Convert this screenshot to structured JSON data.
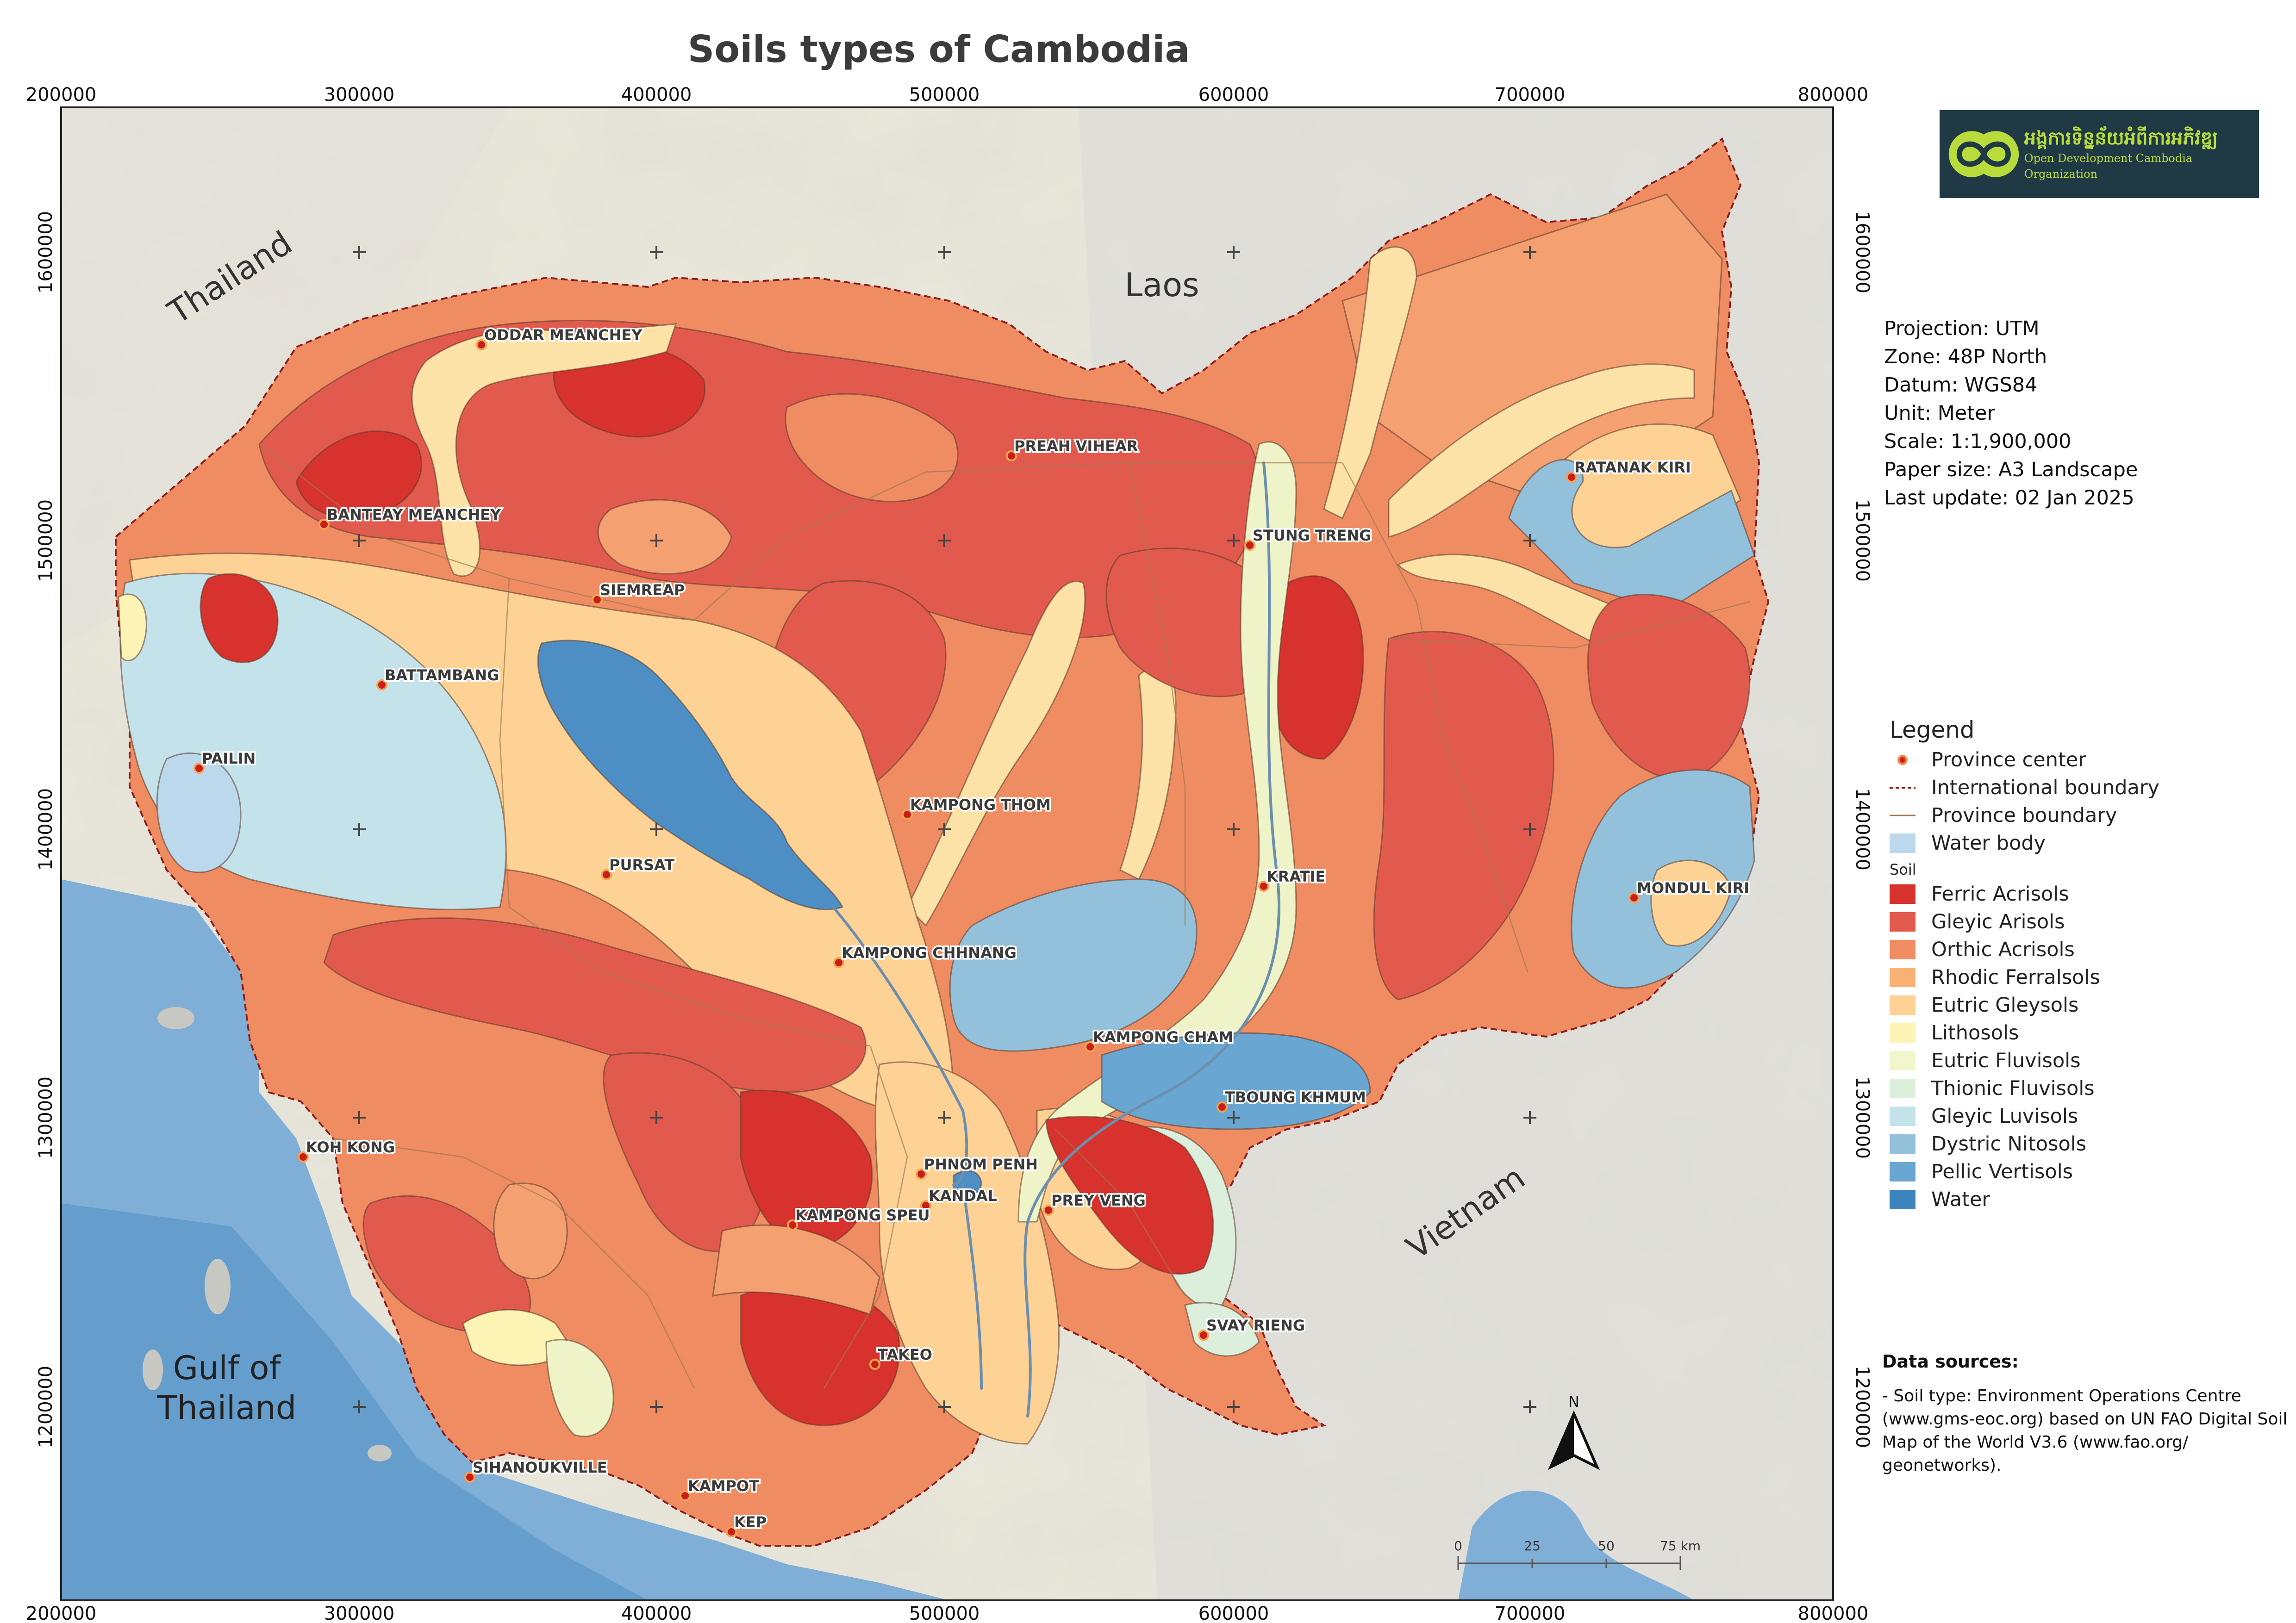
{
  "title": "Soils types of Cambodia",
  "logo": {
    "khmer": "អង្គការទិន្នន័យអំពីការអភិវឌ្ឍ",
    "english": "Open Development Cambodia Organization",
    "colors": {
      "background": "#1f3a44",
      "accent": "#b8dc3c"
    }
  },
  "axes": {
    "x_ticks": [
      "200000",
      "300000",
      "400000",
      "500000",
      "600000",
      "700000",
      "800000"
    ],
    "y_ticks": [
      "1600000",
      "1500000",
      "1400000",
      "1300000",
      "1200000"
    ]
  },
  "country_labels": [
    {
      "text": "Thailand"
    },
    {
      "text": "Laos"
    },
    {
      "text": "Vietnam"
    },
    {
      "text": "Gulf of\nThailand"
    }
  ],
  "provinces": [
    "ODDAR MEANCHEY",
    "PREAH VIHEAR",
    "BANTEAY MEANCHEY",
    "SIEMREAP",
    "STUNG TRENG",
    "RATANAK KIRI",
    "BATTAMBANG",
    "PAILIN",
    "KAMPONG THOM",
    "PURSAT",
    "KRATIE",
    "MONDUL KIRI",
    "KAMPONG CHHNANG",
    "KAMPONG CHAM",
    "TBOUNG KHMUM",
    "KOH KONG",
    "PHNOM PENH",
    "KANDAL",
    "PREY VENG",
    "KAMPONG SPEU",
    "TAKEO",
    "SVAY RIENG",
    "SIHANOUKVILLE",
    "KAMPOT",
    "KEP"
  ],
  "info": [
    "Projection: UTM",
    "Zone: 48P North",
    "Datum: WGS84",
    "Unit: Meter",
    "Scale: 1:1,900,000",
    "Paper size: A3 Landscape",
    "Last update: 02 Jan 2025"
  ],
  "legend": {
    "title": "Legend",
    "items": [
      {
        "label": "Province center",
        "icon": "province-center-dot",
        "color": "#d43a2a"
      },
      {
        "label": "International boundary",
        "icon": "dashed-line",
        "color": "#7a1010"
      },
      {
        "label": "Province boundary",
        "icon": "solid-line",
        "color": "#a07850"
      },
      {
        "label": "Water body",
        "icon": "swatch",
        "color": "#bcd8ec"
      }
    ],
    "soil_heading": "Soil",
    "soil_items": [
      {
        "label": "Ferric Acrisols",
        "color": "#d7322e"
      },
      {
        "label": "Gleyic Arisols",
        "color": "#e25a4e"
      },
      {
        "label": "Orthic Acrisols",
        "color": "#ef8c62"
      },
      {
        "label": "Rhodic Ferralsols",
        "color": "#f9b073"
      },
      {
        "label": "Eutric Gleysols",
        "color": "#fed294"
      },
      {
        "label": "Lithosols",
        "color": "#fdf3b4"
      },
      {
        "label": "Eutric Fluvisols",
        "color": "#f1f6cd"
      },
      {
        "label": "Thionic Fluvisols",
        "color": "#dcefdd"
      },
      {
        "label": "Gleyic Luvisols",
        "color": "#c3e2ea"
      },
      {
        "label": "Dystric Nitosols",
        "color": "#93c1dc"
      },
      {
        "label": "Pellic Vertisols",
        "color": "#6aa6d2"
      },
      {
        "label": "Water",
        "color": "#3c84bd"
      }
    ]
  },
  "scale_bar": {
    "labels": [
      "0",
      "25",
      "50",
      "75 km"
    ]
  },
  "north_arrow": {
    "label": "N"
  },
  "sources": {
    "title": "Data sources:",
    "body": "- Soil type: Environment Operations Centre (www.gms-eoc.org) based on UN FAO Digital Soil Map of the World V3.6 (www.fao.org/ geonetworks)."
  }
}
